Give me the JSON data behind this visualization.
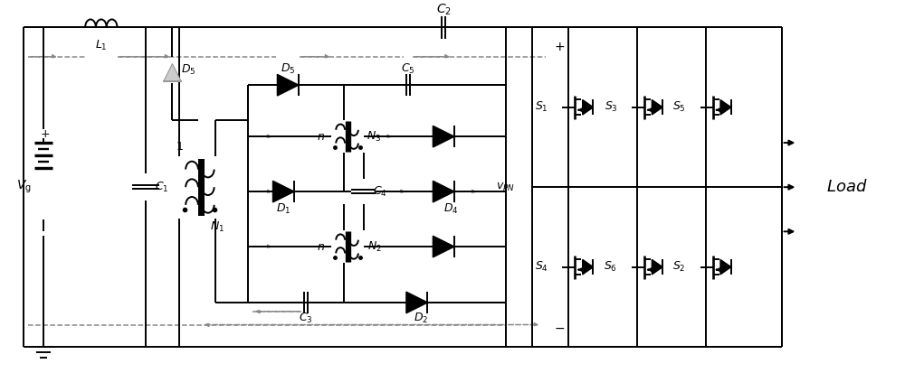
{
  "fig_width": 10.0,
  "fig_height": 4.13,
  "dpi": 100,
  "bg_color": "#ffffff",
  "lc": "#000000",
  "dc": "#888888",
  "lw": 1.4,
  "dlw": 1.1
}
